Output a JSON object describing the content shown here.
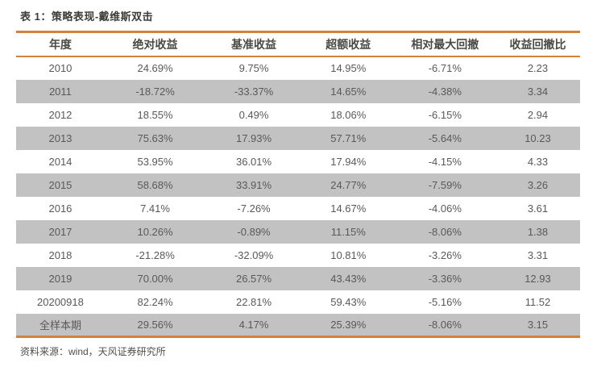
{
  "report_table": {
    "title": "表 1：策略表现-戴维斯双击",
    "columns": [
      "年度",
      "绝对收益",
      "基准收益",
      "超额收益",
      "相对最大回撤",
      "收益回撤比"
    ],
    "rows": [
      [
        "2010",
        "24.69%",
        "9.75%",
        "14.95%",
        "-6.71%",
        "2.23"
      ],
      [
        "2011",
        "-18.72%",
        "-33.37%",
        "14.65%",
        "-4.38%",
        "3.34"
      ],
      [
        "2012",
        "18.55%",
        "0.49%",
        "18.06%",
        "-6.15%",
        "2.94"
      ],
      [
        "2013",
        "75.63%",
        "17.93%",
        "57.71%",
        "-5.64%",
        "10.23"
      ],
      [
        "2014",
        "53.95%",
        "36.01%",
        "17.94%",
        "-4.15%",
        "4.33"
      ],
      [
        "2015",
        "58.68%",
        "33.91%",
        "24.77%",
        "-7.59%",
        "3.26"
      ],
      [
        "2016",
        "7.41%",
        "-7.26%",
        "14.67%",
        "-4.06%",
        "3.61"
      ],
      [
        "2017",
        "10.26%",
        "-0.89%",
        "11.15%",
        "-8.06%",
        "1.38"
      ],
      [
        "2018",
        "-21.28%",
        "-32.09%",
        "10.81%",
        "-3.26%",
        "3.31"
      ],
      [
        "2019",
        "70.00%",
        "26.57%",
        "43.43%",
        "-3.36%",
        "12.93"
      ],
      [
        "20200918",
        "82.24%",
        "22.81%",
        "59.43%",
        "-5.16%",
        "11.52"
      ],
      [
        "全样本期",
        "29.56%",
        "4.17%",
        "25.39%",
        "-8.06%",
        "3.15"
      ]
    ],
    "source": "资料来源：wind，天风证券研究所"
  },
  "colors": {
    "accent": "#D2823B",
    "row_stripe": "#C2C2C2",
    "title_text": "#3D3C36",
    "header_text": "#4A4A43",
    "cell_text": "#595959",
    "source_text": "#4F4F49"
  }
}
